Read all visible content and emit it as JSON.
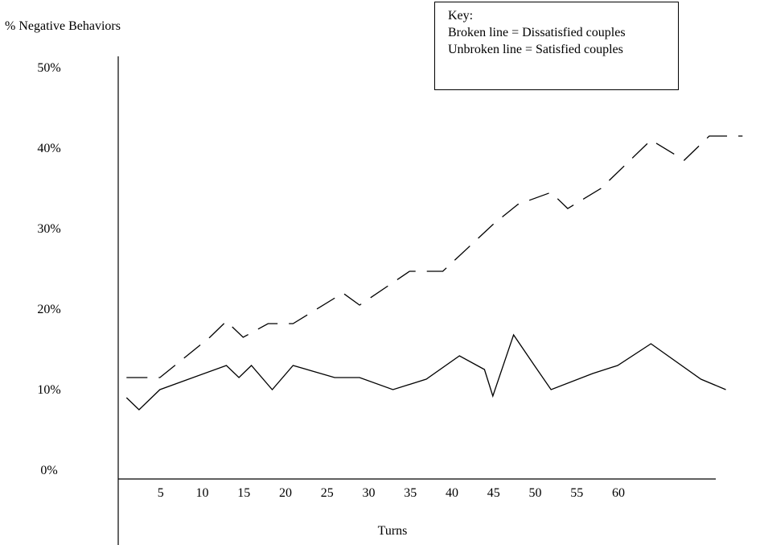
{
  "chart_data": {
    "type": "line",
    "ylabel": "% Negative Behaviors",
    "xlabel": "Turns",
    "ylim": [
      0,
      50
    ],
    "y_ticks": [
      "0%",
      "10%",
      "20%",
      "30%",
      "40%",
      "50%"
    ],
    "x_tick_labels": [
      {
        "label": "5",
        "value": 5
      },
      {
        "label": "10",
        "value": 10
      },
      {
        "label": "15",
        "value": 15
      },
      {
        "label": "20",
        "value": 20
      },
      {
        "label": "25",
        "value": 25
      },
      {
        "label": "30",
        "value": 30
      },
      {
        "label": "35",
        "value": 35
      },
      {
        "label": "40",
        "value": 40
      },
      {
        "label": "45",
        "value": 45
      },
      {
        "label": "50",
        "value": 50
      },
      {
        "label": "55",
        "value": 55
      },
      {
        "label": "60",
        "value": 60
      }
    ],
    "series": [
      {
        "style": "dashed",
        "x": [
          1,
          5,
          11,
          13,
          15,
          18,
          21,
          27,
          29,
          35,
          39,
          45,
          48,
          52,
          54,
          58,
          64,
          68,
          71,
          75
        ],
        "y": [
          11.5,
          11.5,
          16.5,
          18.5,
          16.5,
          18.2,
          18.2,
          22,
          20.5,
          24.7,
          24.7,
          30.5,
          33,
          34.5,
          32.5,
          35,
          41,
          38.5,
          41.5,
          41.5
        ]
      },
      {
        "style": "solid",
        "x": [
          1,
          2.5,
          5,
          13,
          14.5,
          16,
          18.5,
          21,
          26,
          29,
          33,
          37,
          41,
          44,
          45,
          47.5,
          50,
          52,
          57,
          60,
          64,
          70,
          73
        ],
        "y": [
          9,
          7.5,
          10,
          13,
          11.5,
          13,
          10,
          13,
          11.5,
          11.5,
          10,
          11.3,
          14.2,
          12.5,
          9.2,
          16.8,
          13,
          10,
          12,
          13,
          15.7,
          11.3,
          10
        ]
      }
    ],
    "grid": false,
    "legend_position": "top-right"
  },
  "key": {
    "title": "Key:",
    "line1": "Broken line = Dissatisfied couples",
    "line2": "Unbroken line = Satisfied couples"
  }
}
